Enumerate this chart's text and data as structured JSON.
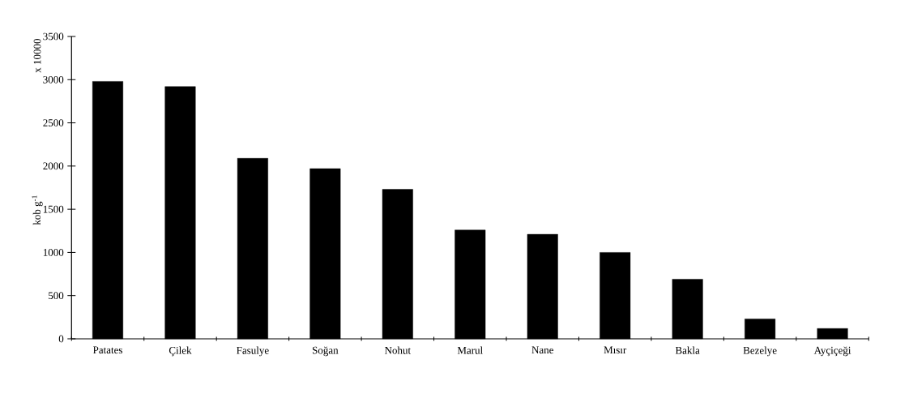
{
  "chart_data": {
    "type": "bar",
    "ylabel": "kob g$^{-1}$",
    "annotations": [
      "x 10000"
    ],
    "categories": [
      "Patates",
      "Çilek",
      "Fasulye",
      "Soğan",
      "Nohut",
      "Marul",
      "Nane",
      "Mısır",
      "Bakla",
      "Bezelye",
      "Ayçiçeği"
    ],
    "values": [
      2980,
      2920,
      2090,
      1970,
      1730,
      1260,
      1210,
      1000,
      690,
      230,
      120
    ],
    "color": "#000000",
    "ylim": [
      0,
      3500
    ],
    "yticks": [
      0,
      500,
      1000,
      1500,
      2000,
      2500,
      3000,
      3500
    ],
    "grid": false
  }
}
